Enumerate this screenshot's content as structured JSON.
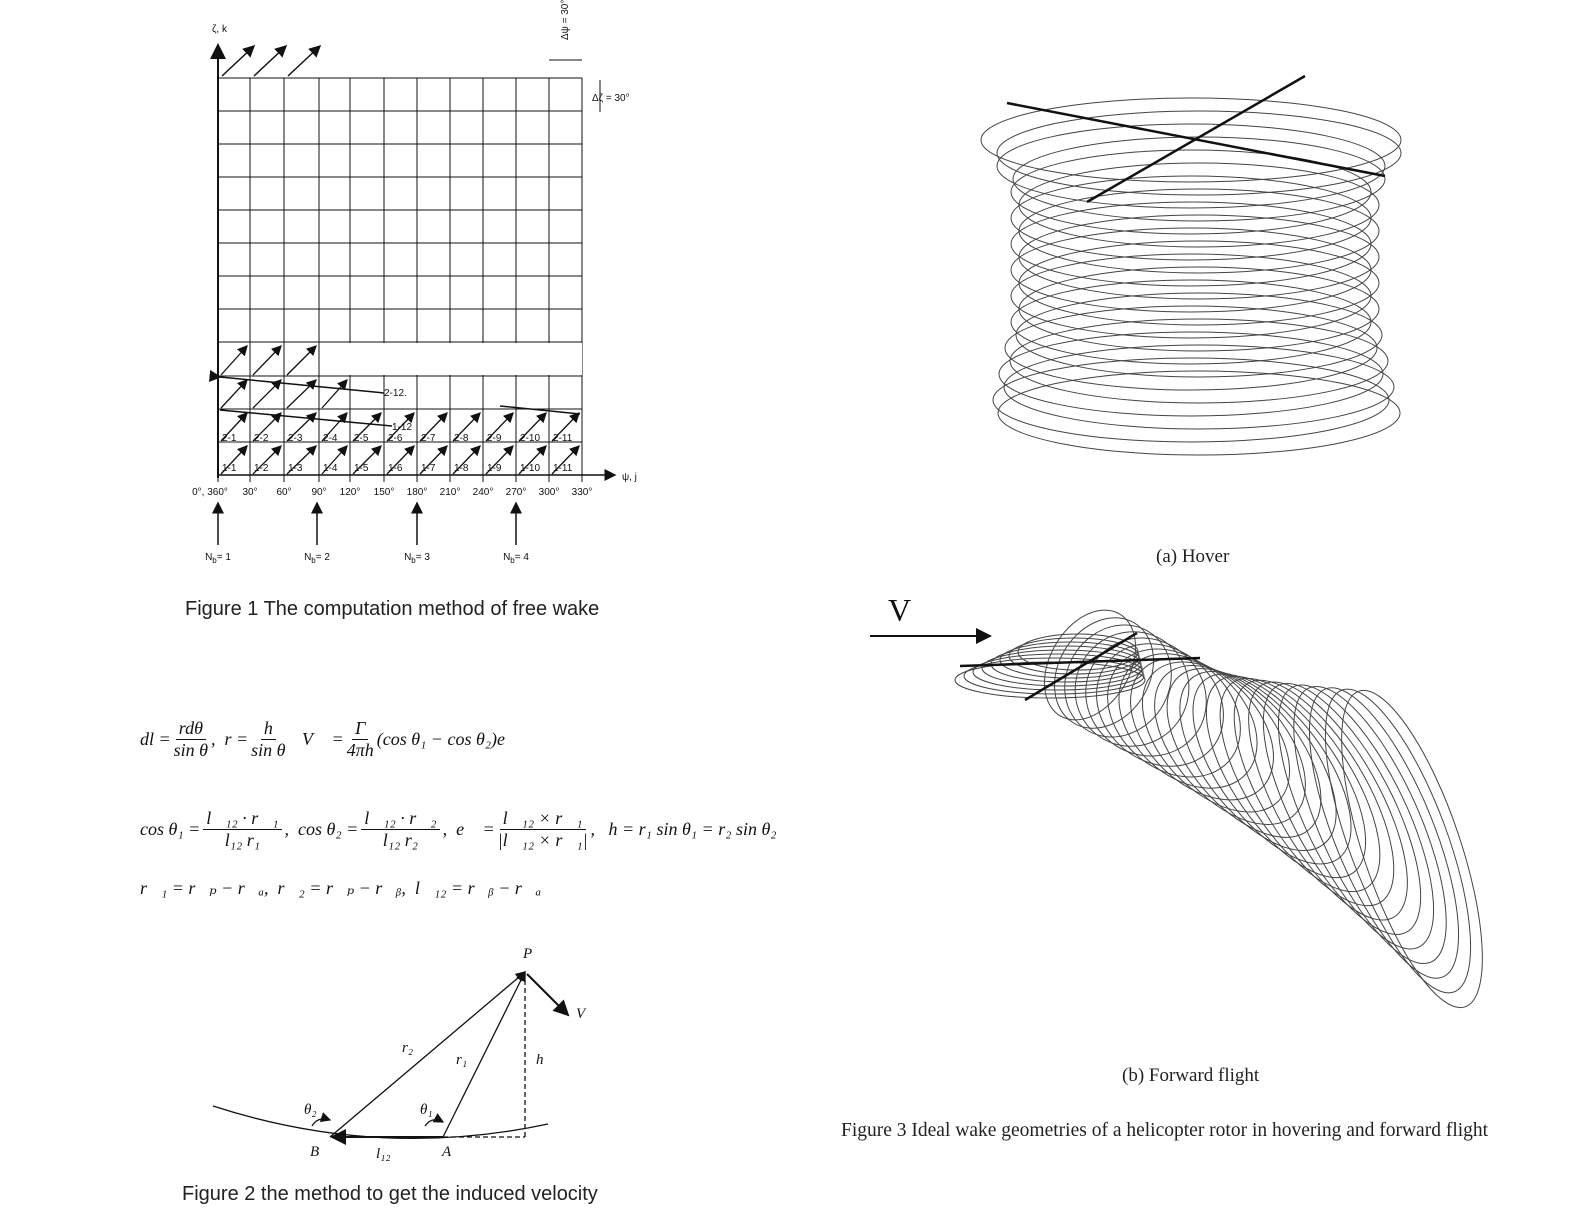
{
  "figure1": {
    "y_axis": "ζ, k",
    "x_axis": "ψ, j",
    "delta_psi": "Δψ = 30°",
    "delta_zeta": "Δζ = 30°",
    "angles": [
      "0°, 360°",
      "30°",
      "60°",
      "90°",
      "120°",
      "150°",
      "180°",
      "210°",
      "240°",
      "270°",
      "300°",
      "330°"
    ],
    "row1": [
      "1-1",
      "1-2",
      "1-3",
      "1-4",
      "1-5",
      "1-6",
      "1-7",
      "1-8",
      "1-9",
      "1-10",
      "1-11"
    ],
    "row2": [
      "2-1",
      "2-2",
      "2-3",
      "2-4",
      "2-5",
      "2-6",
      "2-7",
      "2-8",
      "2-9",
      "2-10",
      "2-11"
    ],
    "label_2_12": "2-12.",
    "label_1_12": "1-12",
    "blades": [
      {
        "symbol": "N",
        "subscript": "b",
        "value": "= 1"
      },
      {
        "symbol": "N",
        "subscript": "b",
        "value": "= 2"
      },
      {
        "symbol": "N",
        "subscript": "b",
        "value": "= 3"
      },
      {
        "symbol": "N",
        "subscript": "b",
        "value": "= 4"
      }
    ],
    "caption": "Figure 1 The computation method of free wake"
  },
  "equations": {
    "lines": [
      [
        "dl =",
        {
          "num": "rdθ",
          "den": "sin θ"
        },
        ",  r =",
        {
          "num": "h",
          "den": "sin θ"
        },
        "   V⃗ =",
        {
          "num": "Γ",
          "den": "4πh"
        },
        "(cos θ₁ − cos θ₂)e⃗"
      ],
      [
        "cos θ₁ =",
        {
          "num": "l⃗₁₂ · r⃗₁",
          "den": "l₁₂ r₁"
        },
        ",  cos θ₂ =",
        {
          "num": "l⃗₁₂ · r⃗₂",
          "den": "l₁₂ r₂"
        },
        ",  e⃗ =",
        {
          "num": "l⃗₁₂ × r⃗₁",
          "den": "|l⃗₁₂ × r⃗₁|"
        },
        ",   h = r₁ sin θ₁ = r₂ sin θ₂"
      ],
      [
        "r⃗₁ = r⃗ₚ − r⃗ₐ,  r⃗₂ = r⃗ₚ − r⃗ᵦ,  l⃗₁₂ = r⃗ᵦ − r⃗ₐ"
      ]
    ]
  },
  "figure2": {
    "point_p": "P",
    "velocity": "V",
    "r2": "r₂",
    "r1": "r₁",
    "h": "h",
    "theta2": "θ₂",
    "theta1": "θ₁",
    "point_b": "B",
    "l12": "l₁₂",
    "point_a": "A",
    "caption": "Figure 2 the method to get the induced velocity"
  },
  "figure3": {
    "velocity": "V",
    "hover": "(a) Hover",
    "forward": "(b) Forward flight",
    "caption": "Figure 3 Ideal wake geometries of a helicopter rotor in hovering and forward flight"
  }
}
